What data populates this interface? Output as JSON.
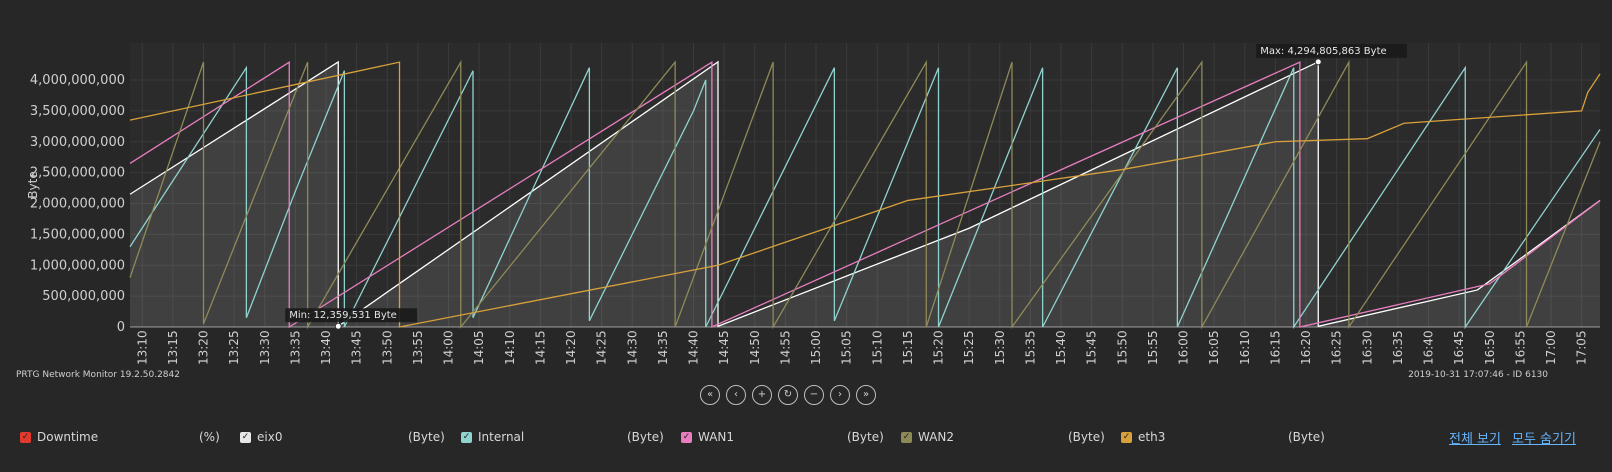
{
  "chart_data": {
    "type": "line",
    "ylabel": "Byte",
    "ylim": [
      0,
      4600000000
    ],
    "y_ticks": [
      "0",
      "500,000,000",
      "1,000,000,000",
      "1,500,000,000",
      "2,000,000,000",
      "2,500,000,000",
      "3,000,000,000",
      "3,500,000,000",
      "4,000,000,000"
    ],
    "x_range": [
      "13:08",
      "17:08"
    ],
    "x_ticks": [
      "13:10",
      "13:15",
      "13:20",
      "13:25",
      "13:30",
      "13:35",
      "13:40",
      "13:45",
      "13:50",
      "13:55",
      "14:00",
      "14:05",
      "14:10",
      "14:15",
      "14:20",
      "14:25",
      "14:30",
      "14:35",
      "14:40",
      "14:45",
      "14:50",
      "14:55",
      "15:00",
      "15:05",
      "15:10",
      "15:15",
      "15:20",
      "15:25",
      "15:30",
      "15:35",
      "15:40",
      "15:45",
      "15:50",
      "15:55",
      "16:00",
      "16:05",
      "16:10",
      "16:15",
      "16:20",
      "16:25",
      "16:30",
      "16:35",
      "16:40",
      "16:45",
      "16:50",
      "16:55",
      "17:00",
      "17:05"
    ],
    "grid": true,
    "series": [
      {
        "name": "eix0",
        "color": "#ffffff",
        "fill": true,
        "points": [
          [
            "13:08",
            2150000000
          ],
          [
            "13:42",
            4294000000
          ],
          [
            "13:42",
            12359531
          ],
          [
            "14:44",
            4294000000
          ],
          [
            "14:44",
            12000000
          ],
          [
            "15:25",
            1600000000
          ],
          [
            "16:22",
            4294805863
          ],
          [
            "16:22",
            12000000
          ],
          [
            "16:48",
            600000000
          ],
          [
            "17:08",
            2050000000
          ]
        ]
      },
      {
        "name": "Internal",
        "color": "#8fd3cf",
        "fill": false,
        "points": [
          [
            "13:08",
            1300000000
          ],
          [
            "13:27",
            4200000000
          ],
          [
            "13:27",
            150000000
          ],
          [
            "13:35",
            2200000000
          ],
          [
            "13:43",
            4150000000
          ],
          [
            "13:43",
            0
          ],
          [
            "14:04",
            4150000000
          ],
          [
            "14:04",
            150000000
          ],
          [
            "14:15",
            2500000000
          ],
          [
            "14:23",
            4200000000
          ],
          [
            "14:23",
            100000000
          ],
          [
            "14:40",
            3500000000
          ],
          [
            "14:42",
            4000000000
          ],
          [
            "14:42",
            0
          ],
          [
            "15:03",
            4200000000
          ],
          [
            "15:03",
            100000000
          ],
          [
            "15:20",
            4200000000
          ],
          [
            "15:20",
            0
          ],
          [
            "15:37",
            4200000000
          ],
          [
            "15:37",
            0
          ],
          [
            "15:59",
            4200000000
          ],
          [
            "15:59",
            0
          ],
          [
            "16:18",
            4200000000
          ],
          [
            "16:18",
            0
          ],
          [
            "16:46",
            4200000000
          ],
          [
            "16:46",
            0
          ],
          [
            "17:08",
            3200000000
          ]
        ]
      },
      {
        "name": "WAN1",
        "color": "#e87ec0",
        "fill": false,
        "points": [
          [
            "13:08",
            2650000000
          ],
          [
            "13:34",
            4290000000
          ],
          [
            "13:34",
            0
          ],
          [
            "14:43",
            4290000000
          ],
          [
            "14:43",
            0
          ],
          [
            "16:19",
            4290000000
          ],
          [
            "16:19",
            0
          ],
          [
            "16:50",
            700000000
          ],
          [
            "17:08",
            2050000000
          ]
        ]
      },
      {
        "name": "WAN2",
        "color": "#8e8a58",
        "fill": false,
        "points": [
          [
            "13:08",
            800000000
          ],
          [
            "13:20",
            4290000000
          ],
          [
            "13:20",
            50000000
          ],
          [
            "13:37",
            4290000000
          ],
          [
            "13:37",
            0
          ],
          [
            "14:02",
            4290000000
          ],
          [
            "14:02",
            0
          ],
          [
            "14:37",
            4290000000
          ],
          [
            "14:37",
            0
          ],
          [
            "14:53",
            4290000000
          ],
          [
            "14:53",
            0
          ],
          [
            "15:18",
            4290000000
          ],
          [
            "15:18",
            0
          ],
          [
            "15:32",
            4290000000
          ],
          [
            "15:32",
            0
          ],
          [
            "16:03",
            4290000000
          ],
          [
            "16:03",
            0
          ],
          [
            "16:27",
            4290000000
          ],
          [
            "16:27",
            0
          ],
          [
            "16:56",
            4290000000
          ],
          [
            "16:56",
            0
          ],
          [
            "17:08",
            3000000000
          ]
        ]
      },
      {
        "name": "eth3",
        "color": "#d9a13b",
        "fill": false,
        "points": [
          [
            "13:08",
            3350000000
          ],
          [
            "13:52",
            4290000000
          ],
          [
            "13:52",
            0
          ],
          [
            "14:44",
            1000000000
          ],
          [
            "15:15",
            2050000000
          ],
          [
            "15:50",
            2550000000
          ],
          [
            "16:15",
            3000000000
          ],
          [
            "16:30",
            3050000000
          ],
          [
            "16:36",
            3300000000
          ],
          [
            "17:05",
            3500000000
          ],
          [
            "17:06",
            3800000000
          ],
          [
            "17:08",
            4100000000
          ]
        ]
      }
    ],
    "max_marker": {
      "label": "Max: 4,294,805,863 Byte",
      "x": "16:22",
      "y": 4294805863
    },
    "min_marker": {
      "label": "Min: 12,359,531 Byte",
      "x": "13:42",
      "y": 12359531
    }
  },
  "footer": {
    "version": "PRTG Network Monitor 19.2.50.2842",
    "timestamp": "2019-10-31 17:07:46 - ID 6130"
  },
  "nav": [
    "«",
    "‹",
    "+",
    "↻",
    "−",
    "›",
    "»"
  ],
  "legend": [
    {
      "name": "Downtime",
      "unit": "(%)",
      "color": "#e03a2f"
    },
    {
      "name": "eix0",
      "unit": "(Byte)",
      "color": "#e8e8e8"
    },
    {
      "name": "Internal",
      "unit": "(Byte)",
      "color": "#8fd3cf"
    },
    {
      "name": "WAN1",
      "unit": "(Byte)",
      "color": "#e87ec0"
    },
    {
      "name": "WAN2",
      "unit": "(Byte)",
      "color": "#8e8a58"
    },
    {
      "name": "eth3",
      "unit": "(Byte)",
      "color": "#d9a13b"
    }
  ],
  "links": {
    "show_all": "전체 보기",
    "hide_all": "모두 숨기기"
  }
}
